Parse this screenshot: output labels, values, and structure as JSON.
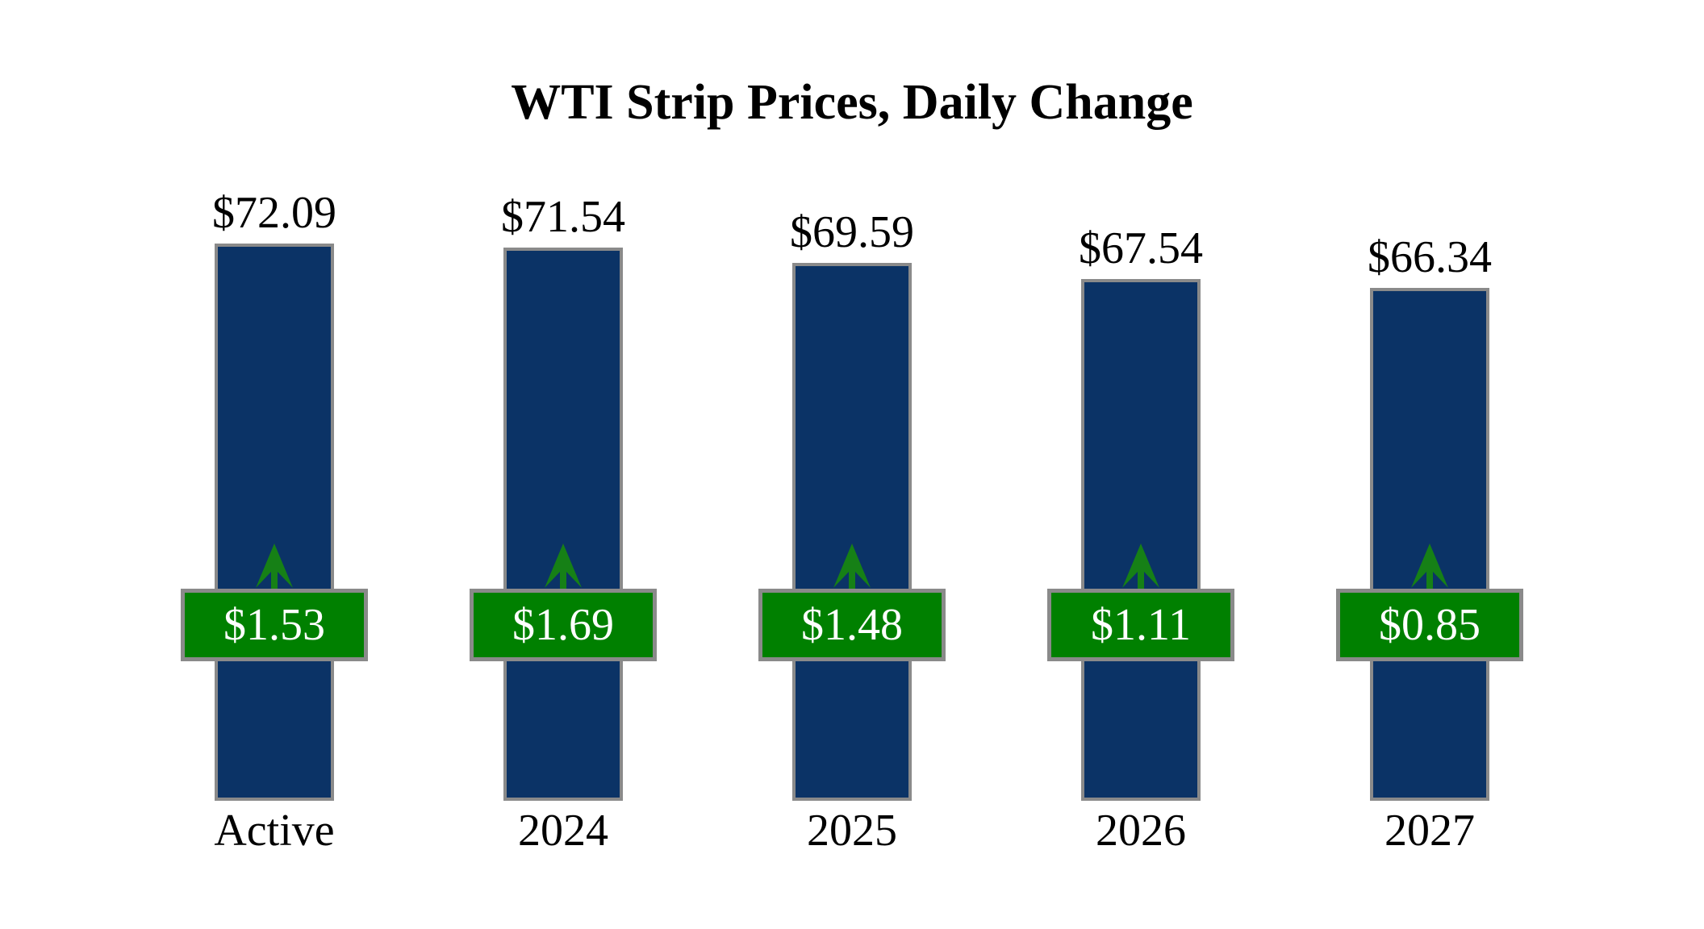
{
  "page": {
    "background": "#FFFFFF"
  },
  "chart_data": {
    "type": "bar",
    "title": "WTI Strip Prices, Daily Change",
    "categories": [
      "Active",
      "2024",
      "2025",
      "2026",
      "2027"
    ],
    "series": [
      {
        "name": "WTI strip price",
        "values": [
          72.09,
          71.54,
          69.59,
          67.54,
          66.34
        ],
        "labels": [
          "$72.09",
          "$71.54",
          "$69.59",
          "$67.54",
          "$66.34"
        ]
      },
      {
        "name": "Daily change",
        "values": [
          1.53,
          1.69,
          1.48,
          1.11,
          0.85
        ],
        "labels": [
          "$1.53",
          "$1.69",
          "$1.48",
          "$1.11",
          "$0.85"
        ],
        "direction": "up"
      }
    ],
    "ylim": [
      0,
      75
    ],
    "bars_start_at": 0,
    "grid": false,
    "axes_hidden": true,
    "legend": "none",
    "colors": {
      "bar_fill": "#0B3366",
      "badge_fill": "#008000",
      "arrow_green": "#168016",
      "border_gray": "#8A8A8A",
      "price_text": "#000000",
      "badge_text": "#FFFFFF",
      "category_text": "#000000"
    }
  }
}
